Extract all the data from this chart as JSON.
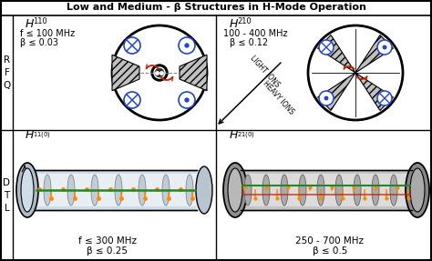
{
  "title": "Low and Medium - β Structures in H-Mode Operation",
  "bg_color": "#ffffff",
  "h110_freq": "f ≤ 100 MHz",
  "h110_beta": "β ≤ 0.03",
  "h210_freq": "100 - 400 MHz",
  "h210_beta": "β ≤ 0.12",
  "h110_freq2": "f ≤ 300 MHz",
  "h110_beta2": "β ≤ 0.25",
  "h210_freq2": "250 - 700 MHz",
  "h210_beta2": "β ≤ 0.5",
  "rfq_label": "R\nF\nQ",
  "dtl_label": "D\nT\nL",
  "light_ions": "LIGHT IONS",
  "heavy_ions": "HEAVY IONS",
  "blue": "#2244cc",
  "red": "#cc2200",
  "green": "#228822",
  "orange": "#ff8800"
}
